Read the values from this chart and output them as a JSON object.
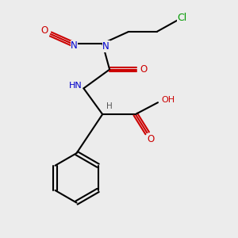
{
  "background_color": "#ececec",
  "figsize": [
    3.0,
    3.0
  ],
  "dpi": 100,
  "bond_color": "#000000",
  "bond_lw": 1.5,
  "colors": {
    "C": "#000000",
    "N": "#0000cc",
    "O": "#cc0000",
    "Cl": "#009900",
    "H": "#555555"
  },
  "font_size": 8.5
}
